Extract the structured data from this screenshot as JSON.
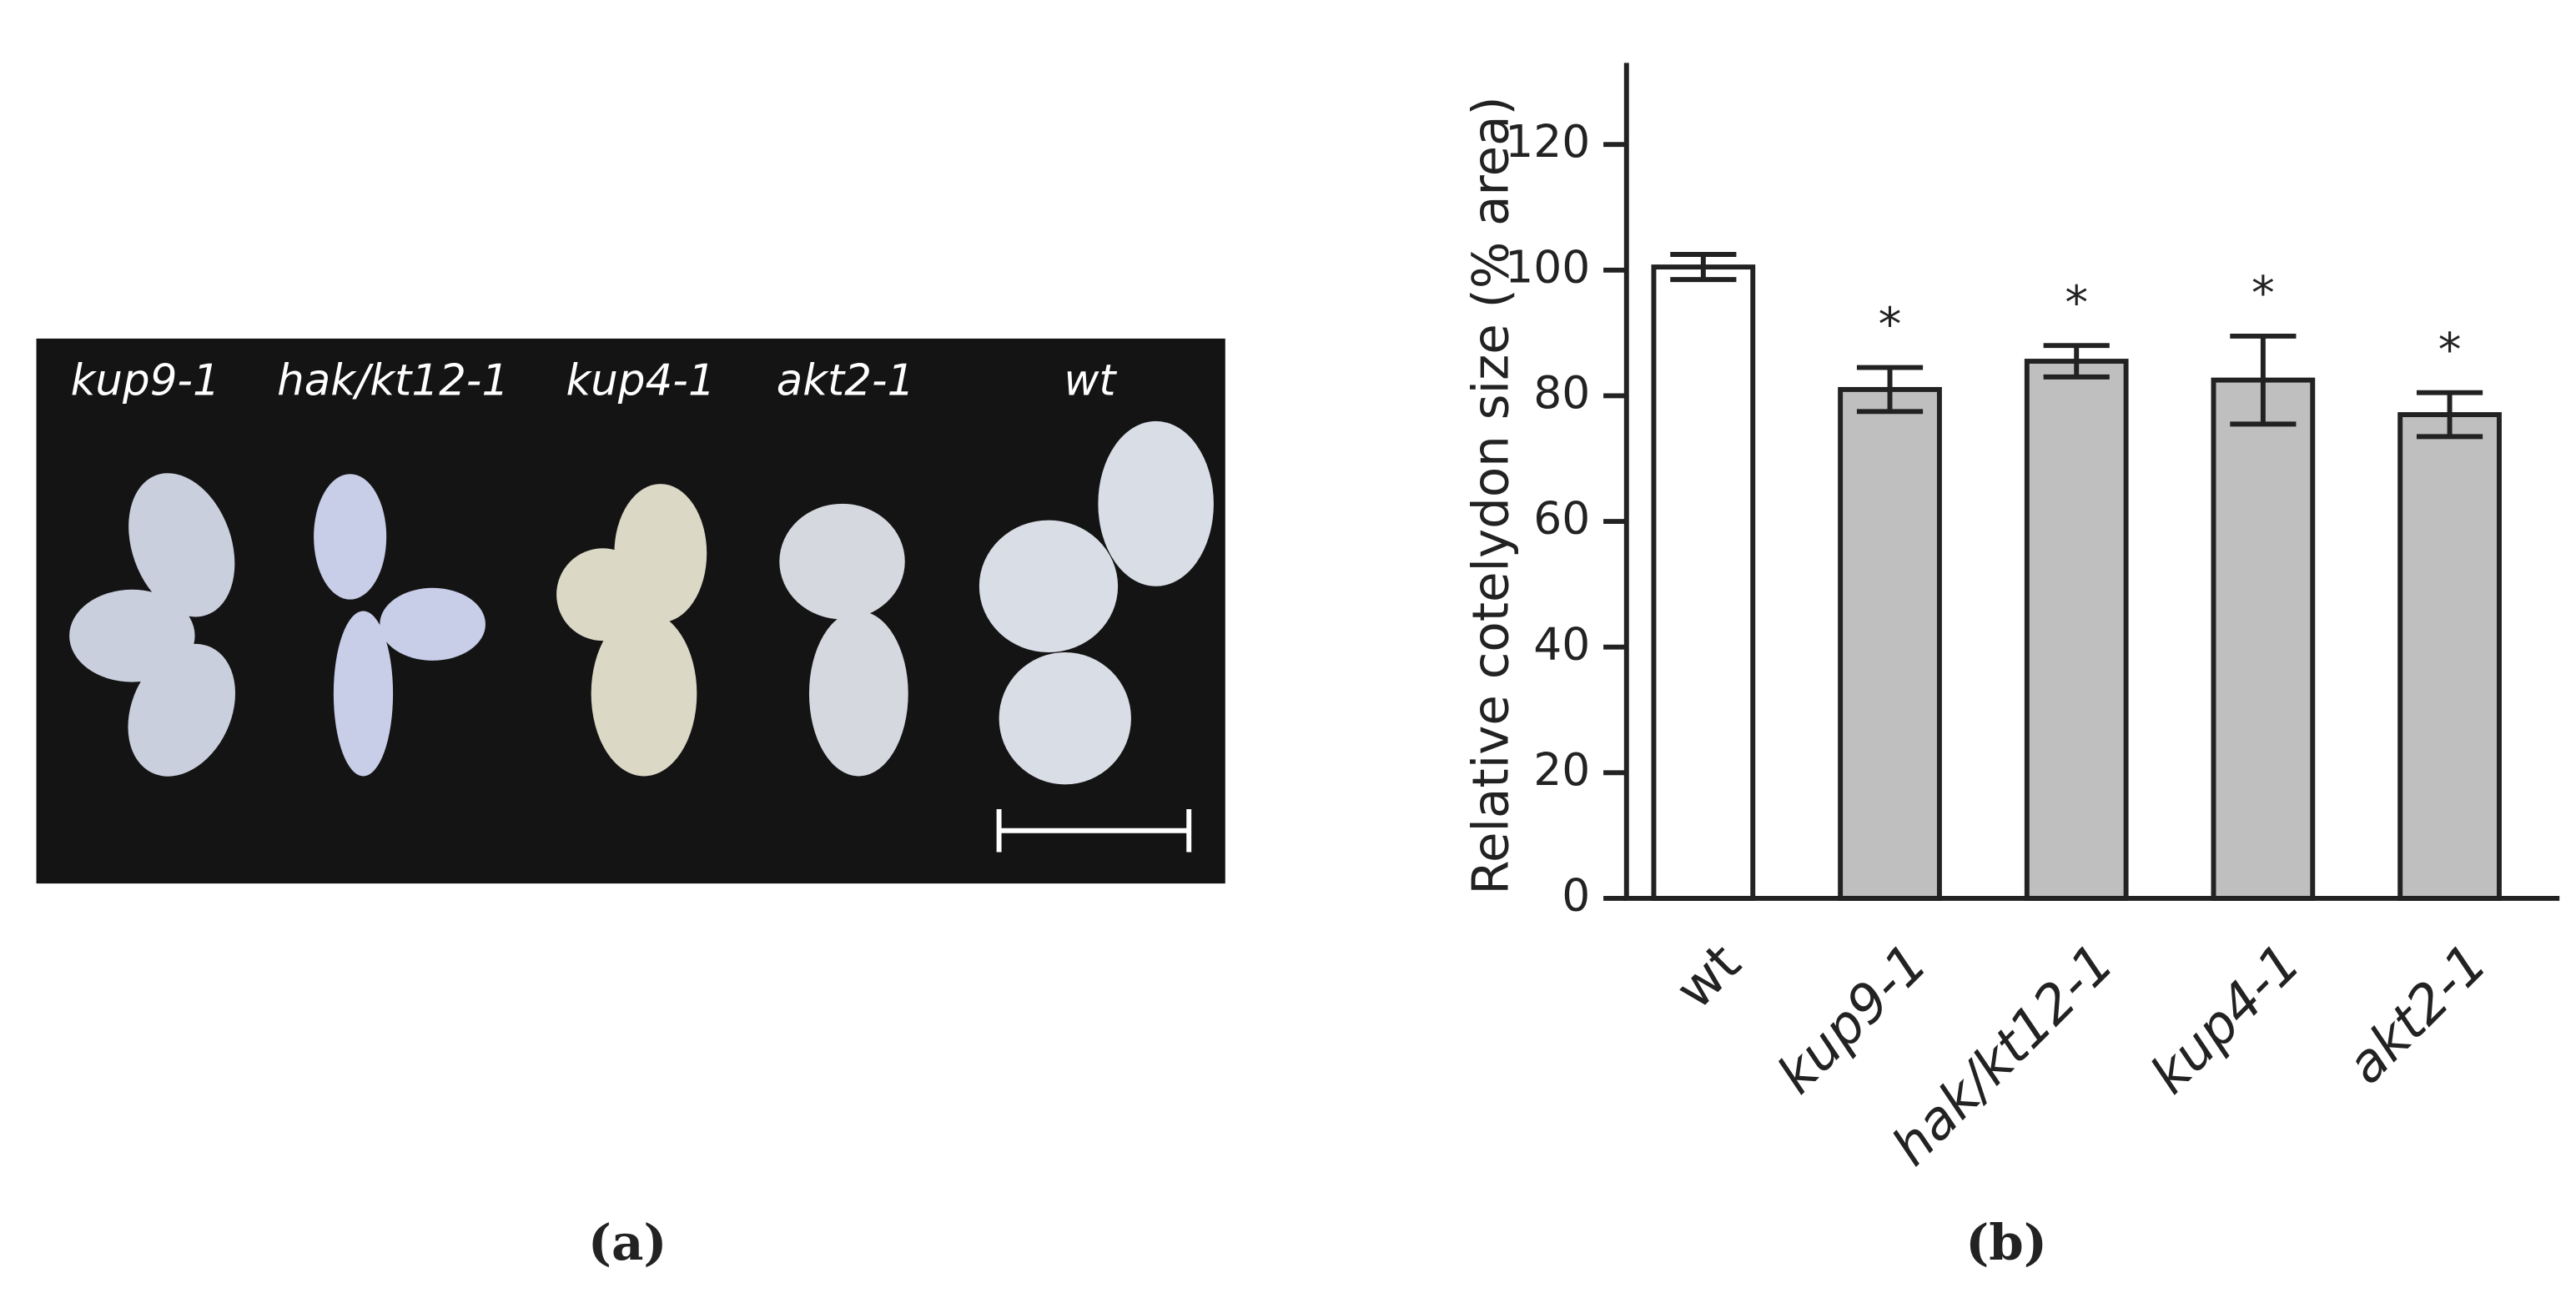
{
  "panel_a": {
    "labels": [
      "kup9-1",
      "hak/kt12-1",
      "kup4-1",
      "akt2-1",
      "wt"
    ]
  },
  "chart_data": {
    "type": "bar",
    "y_label": "Relative cotelydon size (% area)",
    "categories": [
      "wt",
      "kup9-1",
      "hak/kt12-1",
      "kup4-1",
      "akt2-1"
    ],
    "values": [
      100.5,
      81,
      85.5,
      82.5,
      77
    ],
    "errors": [
      2,
      3.5,
      2.5,
      7,
      3.5
    ],
    "colors": [
      "#ffffff",
      "#bfbfbf",
      "#bfbfbf",
      "#bfbfbf",
      "#bfbfbf"
    ],
    "annotations": [
      null,
      "*",
      "*",
      "*",
      "*"
    ],
    "ylim": [
      0,
      133
    ],
    "yticks": [
      0,
      20,
      40,
      60,
      80,
      100,
      120
    ],
    "grid": false
  },
  "panel_labels": [
    "(a)",
    "(b)"
  ]
}
